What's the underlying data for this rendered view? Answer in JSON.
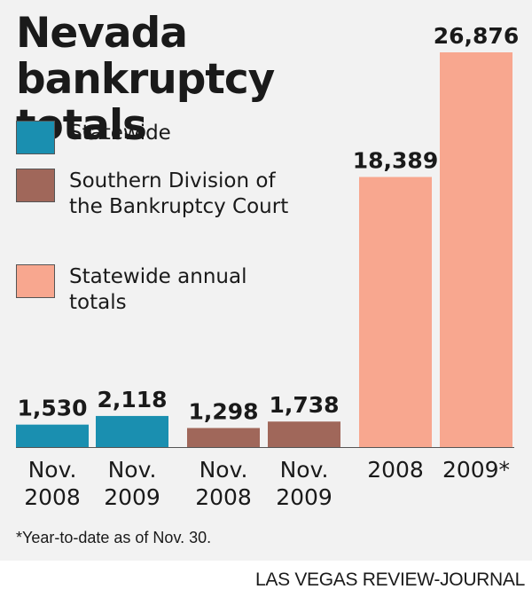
{
  "chart_data": {
    "type": "bar",
    "title": "Nevada bankruptcy totals",
    "legend": [
      {
        "label": "Statewide",
        "color": "#1a8fb0"
      },
      {
        "label": "Southern Division of the Bankruptcy Court",
        "color": "#a0675a"
      },
      {
        "label": "Statewide annual totals",
        "color": "#f8a78f"
      }
    ],
    "bars": [
      {
        "category": [
          "Nov.",
          "2008"
        ],
        "value": 1530,
        "label": "1,530",
        "series": 0
      },
      {
        "category": [
          "Nov.",
          "2009"
        ],
        "value": 2118,
        "label": "2,118",
        "series": 0
      },
      {
        "category": [
          "Nov.",
          "2008"
        ],
        "value": 1298,
        "label": "1,298",
        "series": 1
      },
      {
        "category": [
          "Nov.",
          "2009"
        ],
        "value": 1738,
        "label": "1,738",
        "series": 1
      },
      {
        "category": [
          "2008"
        ],
        "value": 18389,
        "label": "18,389",
        "series": 2
      },
      {
        "category": [
          "2009*"
        ],
        "value": 26876,
        "label": "26,876",
        "series": 2
      }
    ],
    "ylim": [
      0,
      30000
    ],
    "grid": false,
    "legend_position": "top-left"
  },
  "footnote": "*Year-to-date as of Nov. 30.",
  "credit": "LAS VEGAS REVIEW-JOURNAL"
}
